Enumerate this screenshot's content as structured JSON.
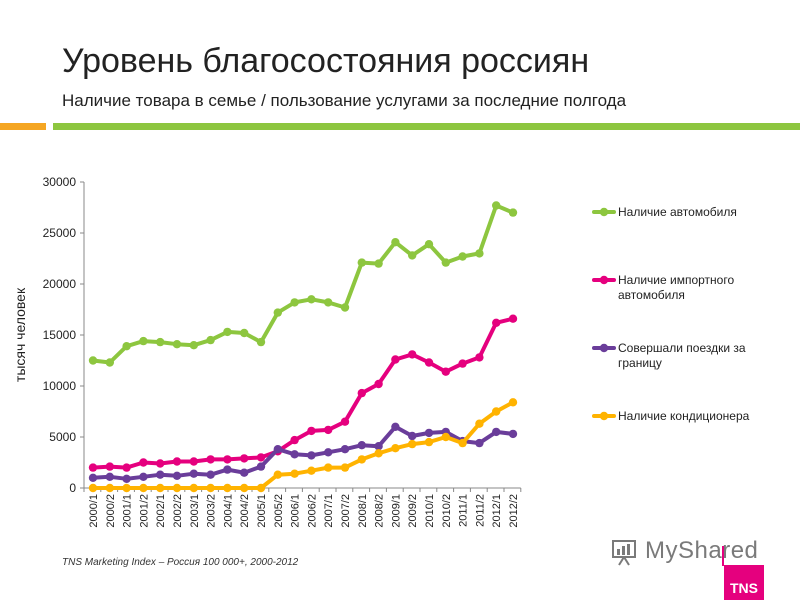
{
  "header": {
    "title": "Уровень благосостояния россиян",
    "subtitle": "Наличие товара в семье / пользование услугами за последние полгода"
  },
  "footer": {
    "source": "TNS Marketing Index – Россия 100 000+, 2000-2012",
    "watermark": "MyShared",
    "brand": "TNS"
  },
  "colors": {
    "accent_orange": "#F5A623",
    "accent_green": "#8DC63F",
    "brand_pink": "#E5007E"
  },
  "chart_data": {
    "type": "line",
    "title": "",
    "xlabel": "",
    "ylabel": "тысяч человек",
    "ylim": [
      0,
      30000
    ],
    "yticks": [
      0,
      5000,
      10000,
      15000,
      20000,
      25000,
      30000
    ],
    "grid": false,
    "legend_placement": "right",
    "categories": [
      "2000/1",
      "2000/2",
      "2001/1",
      "2001/2",
      "2002/1",
      "2002/2",
      "2003/1",
      "2003/2",
      "2004/1",
      "2004/2",
      "2005/1",
      "2005/2",
      "2006/1",
      "2006/2",
      "2007/1",
      "2007/2",
      "2008/1",
      "2008/2",
      "2009/1",
      "2009/2",
      "2010/1",
      "2010/2",
      "2011/1",
      "2011/2",
      "2012/1",
      "2012/2"
    ],
    "series": [
      {
        "name": "Наличие автомобиля",
        "color": "#8DC63F",
        "values": [
          12500,
          12300,
          13900,
          14400,
          14300,
          14100,
          14000,
          14500,
          15300,
          15200,
          14300,
          17200,
          18200,
          18500,
          18200,
          17700,
          22100,
          22000,
          24100,
          22800,
          23900,
          22100,
          22700,
          23000,
          27700,
          27000
        ]
      },
      {
        "name": "Наличие импортного автомобиля",
        "color": "#E5007E",
        "values": [
          2000,
          2100,
          2000,
          2500,
          2400,
          2600,
          2600,
          2800,
          2800,
          2900,
          3000,
          3600,
          4700,
          5600,
          5700,
          6500,
          9300,
          10200,
          12600,
          13100,
          12300,
          11400,
          12200,
          12800,
          16200,
          16600
        ]
      },
      {
        "name": "Совершали поездки за границу",
        "color": "#6A3D9A",
        "values": [
          1000,
          1100,
          900,
          1100,
          1300,
          1200,
          1400,
          1300,
          1800,
          1500,
          2100,
          3800,
          3300,
          3200,
          3500,
          3800,
          4200,
          4100,
          6000,
          5100,
          5400,
          5500,
          4600,
          4400,
          5500,
          5300
        ]
      },
      {
        "name": "Наличие кондиционера",
        "color": "#FFB300",
        "values": [
          0,
          0,
          0,
          0,
          0,
          0,
          0,
          0,
          0,
          0,
          0,
          1300,
          1400,
          1700,
          2000,
          2000,
          2800,
          3400,
          3900,
          4300,
          4500,
          5000,
          4400,
          6300,
          7500,
          8400
        ]
      }
    ]
  }
}
